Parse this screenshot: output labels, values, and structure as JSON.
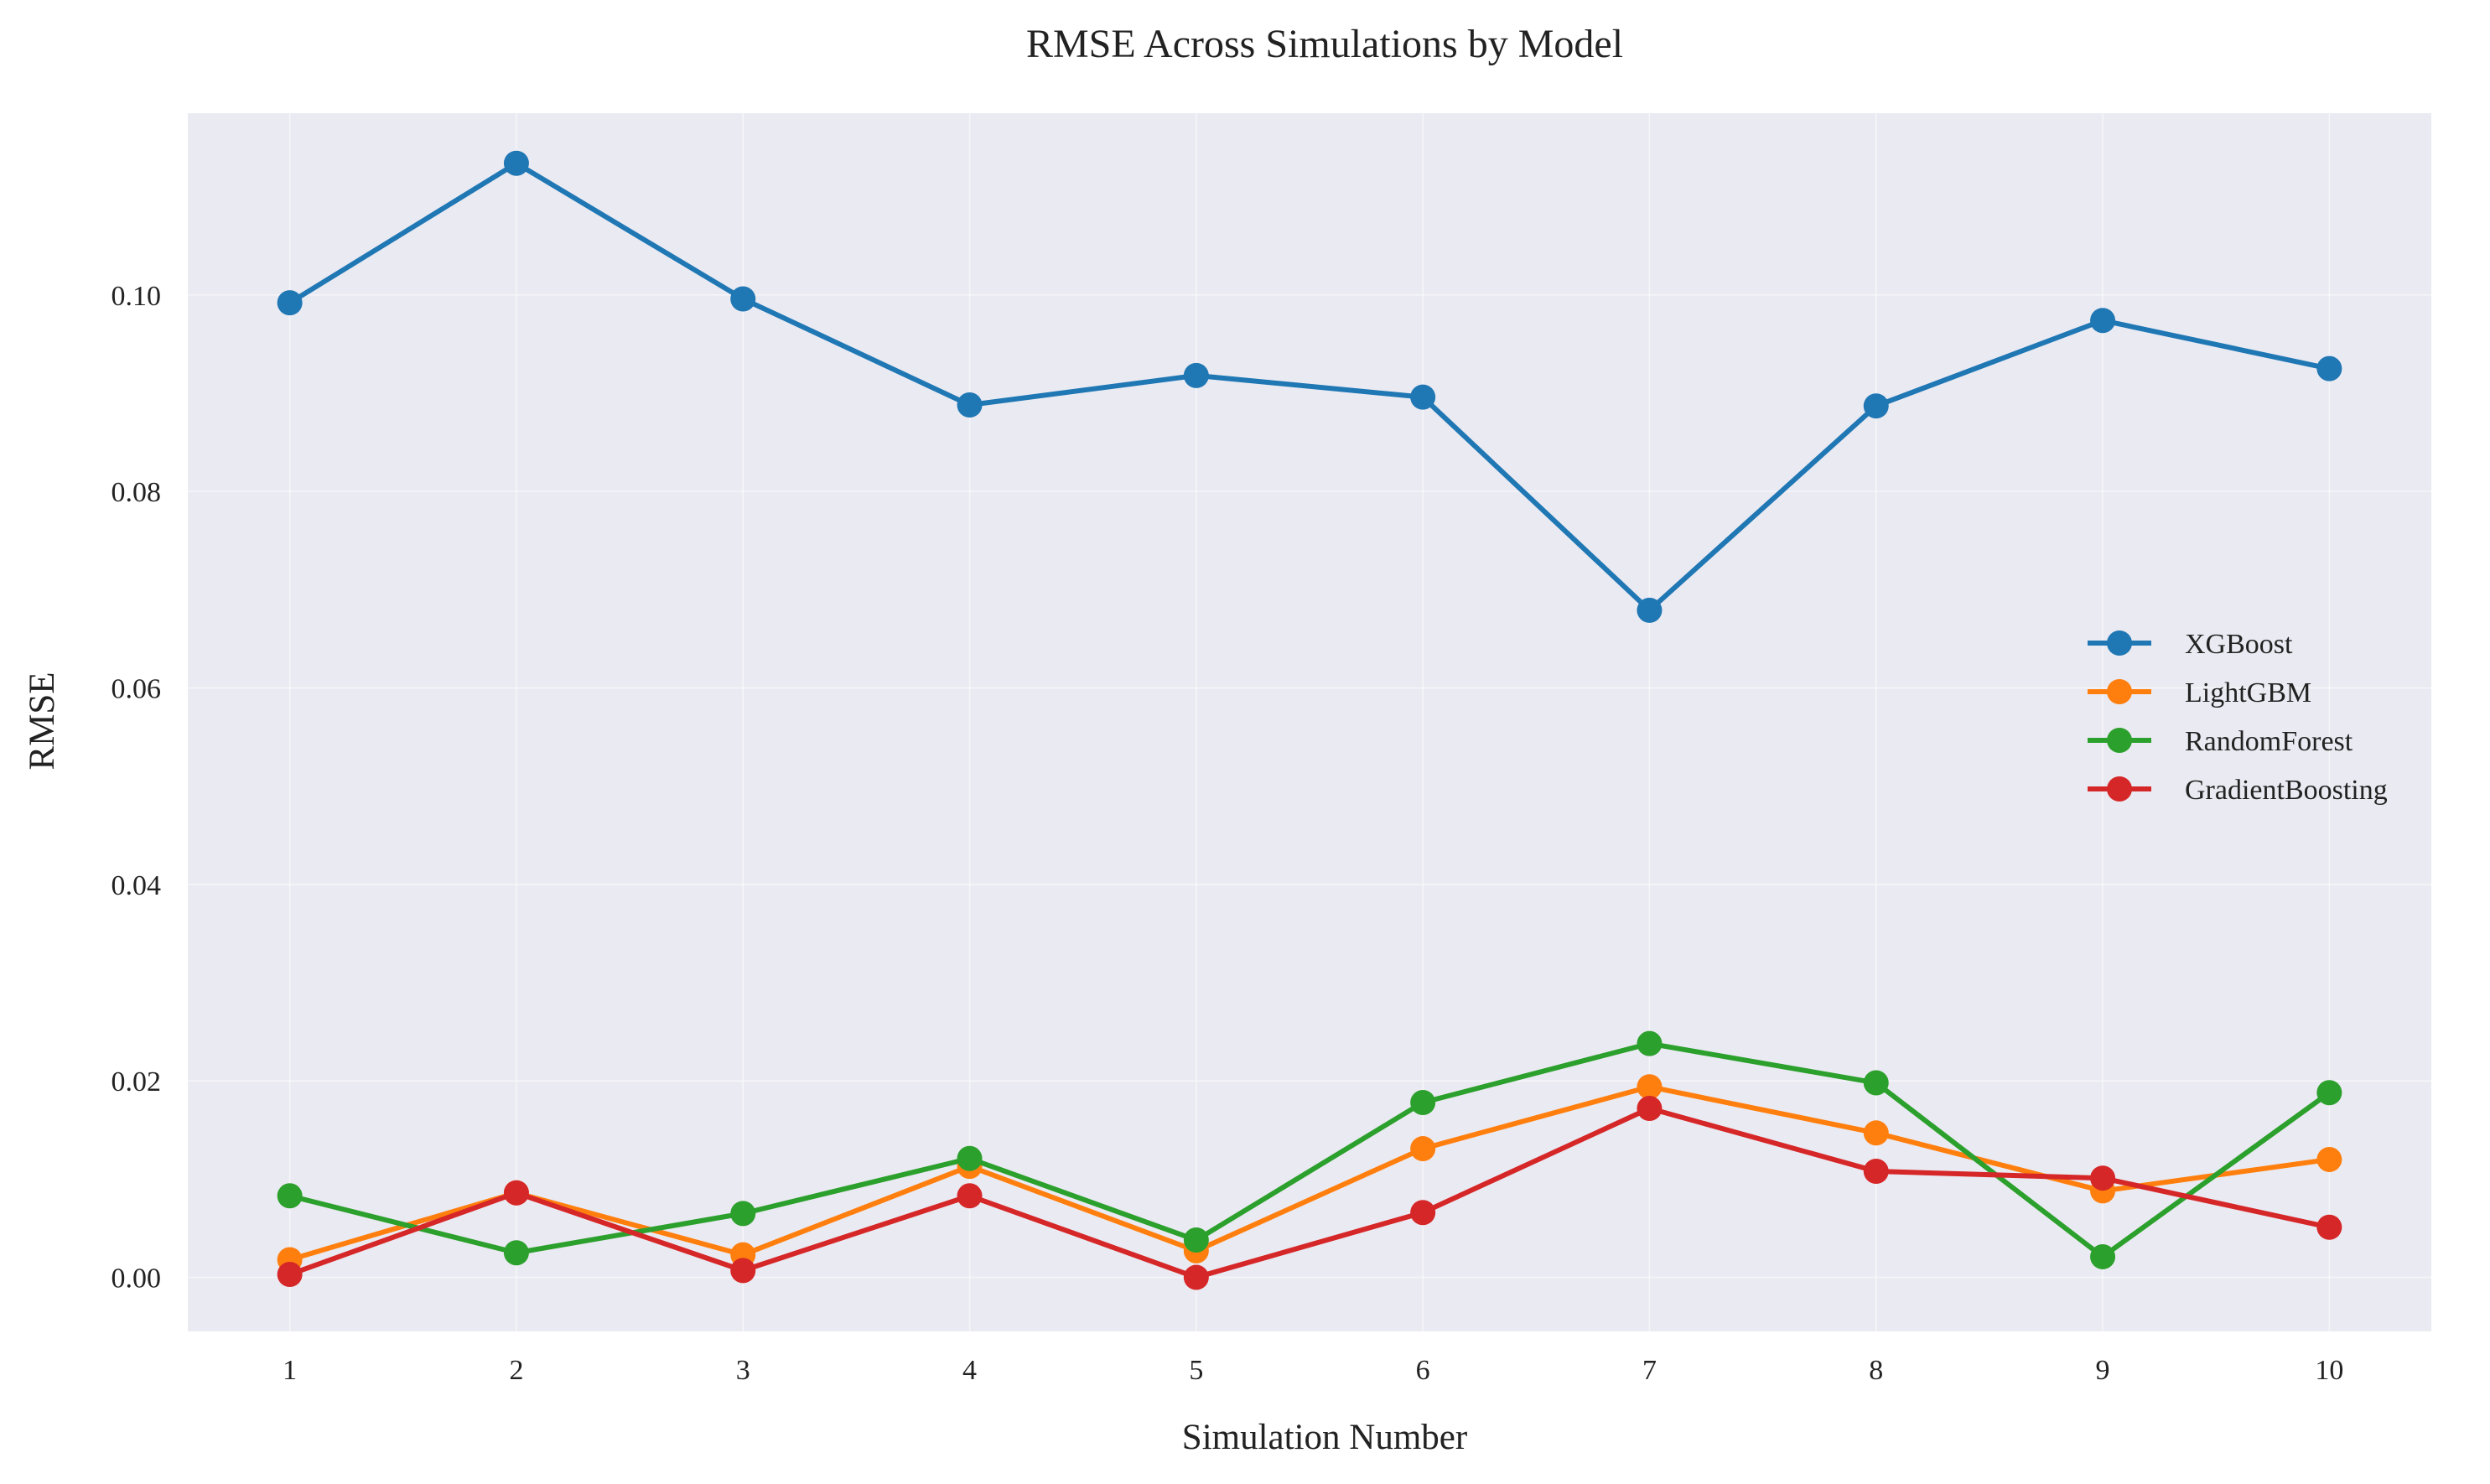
{
  "chart_data": {
    "type": "line",
    "title": "RMSE Across Simulations by Model",
    "xlabel": "Simulation Number",
    "ylabel": "RMSE",
    "x": [
      1,
      2,
      3,
      4,
      5,
      6,
      7,
      8,
      9,
      10
    ],
    "xlim": [
      0.55,
      10.45
    ],
    "ylim": [
      -0.0055,
      0.1185
    ],
    "yticks": [
      "0.00",
      "0.02",
      "0.04",
      "0.06",
      "0.08",
      "0.10"
    ],
    "grid": true,
    "legend_position": "center-right",
    "series": [
      {
        "name": "XGBoost",
        "color": "#1f77b4",
        "values": [
          0.0992,
          0.1134,
          0.0996,
          0.0888,
          0.0918,
          0.0896,
          0.0679,
          0.0887,
          0.0974,
          0.0925
        ]
      },
      {
        "name": "LightGBM",
        "color": "#ff7f0e",
        "values": [
          0.0018,
          0.0086,
          0.0023,
          0.0113,
          0.0027,
          0.0131,
          0.0194,
          0.0147,
          0.0088,
          0.012
        ]
      },
      {
        "name": "RandomForest",
        "color": "#2ca02c",
        "values": [
          0.0083,
          0.0025,
          0.0065,
          0.0121,
          0.0038,
          0.0178,
          0.0238,
          0.0198,
          0.0021,
          0.0188
        ]
      },
      {
        "name": "GradientBoosting",
        "color": "#d62728",
        "values": [
          0.0003,
          0.0086,
          0.0007,
          0.0083,
          0.0,
          0.0066,
          0.0172,
          0.0108,
          0.0101,
          0.0051
        ]
      }
    ]
  }
}
